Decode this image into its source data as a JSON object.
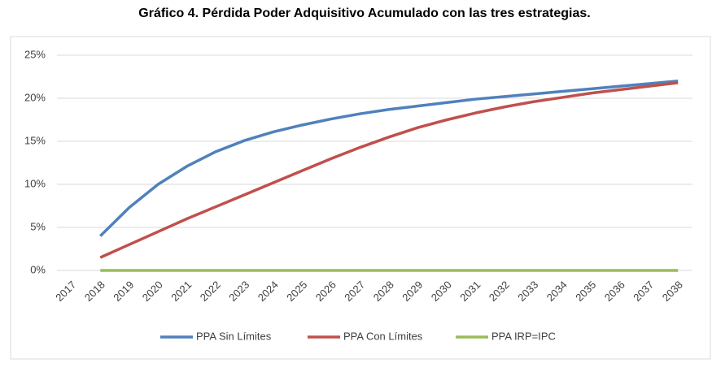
{
  "chart_data": {
    "type": "line",
    "title": "Gráfico 4. Pérdida Poder Adquisitivo Acumulado con las tres estrategias.",
    "categories": [
      "2017",
      "2018",
      "2019",
      "2020",
      "2021",
      "2022",
      "2023",
      "2024",
      "2025",
      "2026",
      "2027",
      "2028",
      "2029",
      "2030",
      "2031",
      "2032",
      "2033",
      "2034",
      "2035",
      "2036",
      "2037",
      "2038"
    ],
    "series": [
      {
        "name": "PPA Sin Límites",
        "color": "#4f81bd",
        "values": [
          null,
          4.0,
          7.3,
          10.0,
          12.1,
          13.8,
          15.1,
          16.1,
          16.9,
          17.6,
          18.2,
          18.7,
          19.1,
          19.5,
          19.9,
          20.2,
          20.5,
          20.8,
          21.1,
          21.4,
          21.7,
          22.0
        ]
      },
      {
        "name": "PPA Con Límites",
        "color": "#c0504d",
        "values": [
          null,
          1.5,
          3.0,
          4.5,
          6.0,
          7.4,
          8.8,
          10.2,
          11.6,
          13.0,
          14.3,
          15.5,
          16.6,
          17.5,
          18.3,
          19.0,
          19.6,
          20.1,
          20.6,
          21.0,
          21.4,
          21.8
        ]
      },
      {
        "name": "PPA IRP=IPC",
        "color": "#9bbb59",
        "values": [
          null,
          0,
          0,
          0,
          0,
          0,
          0,
          0,
          0,
          0,
          0,
          0,
          0,
          0,
          0,
          0,
          0,
          0,
          0,
          0,
          0,
          0
        ]
      }
    ],
    "ylim": [
      0,
      25
    ],
    "yticks": [
      {
        "value": 0,
        "label": "0%"
      },
      {
        "value": 5,
        "label": "5%"
      },
      {
        "value": 10,
        "label": "10%"
      },
      {
        "value": 15,
        "label": "15%"
      },
      {
        "value": 20,
        "label": "20%"
      },
      {
        "value": 25,
        "label": "25%"
      }
    ],
    "grid": true
  }
}
